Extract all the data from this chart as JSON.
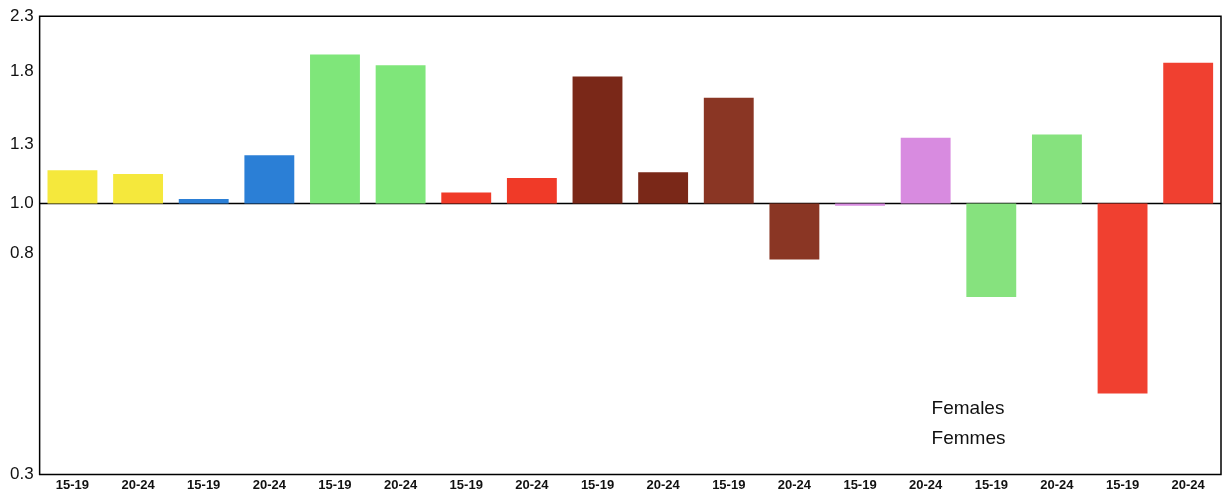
{
  "chart_data": {
    "type": "bar",
    "categories": [
      "15-19",
      "20-24",
      "15-19",
      "20-24",
      "15-19",
      "20-24",
      "15-19",
      "20-24",
      "15-19",
      "20-24",
      "15-19",
      "20-24",
      "15-19",
      "20-24",
      "15-19",
      "20-24",
      "15-19",
      "20-24"
    ],
    "base": [
      1,
      1,
      1,
      1,
      1,
      1,
      1,
      1,
      1,
      1,
      1,
      1,
      1,
      1,
      1,
      1,
      1,
      1
    ],
    "values": [
      0.16,
      0.14,
      0.02,
      0.24,
      0.94,
      0.85,
      0.05,
      0.12,
      0.76,
      0.15,
      0.6,
      -0.22,
      -0.01,
      0.34,
      -0.34,
      0.36,
      -0.57,
      0.87
    ],
    "colors": [
      "#f5e83c",
      "#f5e83c",
      "#2b7fd6",
      "#2b7fd6",
      "#7fe67a",
      "#7fe67a",
      "#f03a28",
      "#f03a28",
      "#7a2818",
      "#7a2818",
      "#8a3624",
      "#8a3624",
      "#d88be0",
      "#d88be0",
      "#86e27e",
      "#86e27e",
      "#f04030",
      "#f04030"
    ],
    "log": "y",
    "ylim": [
      0.3,
      2.3
    ],
    "yticks": [
      0.3,
      0.8,
      {
        "value": 1,
        "label": "1.0"
      },
      1.3,
      1.8,
      2.3
    ],
    "ref_lines": [
      {
        "axis": "y",
        "value": 1,
        "color": "#000000"
      }
    ],
    "annotations": [
      "Females",
      "Femmes"
    ],
    "grid": false,
    "legend": false
  }
}
